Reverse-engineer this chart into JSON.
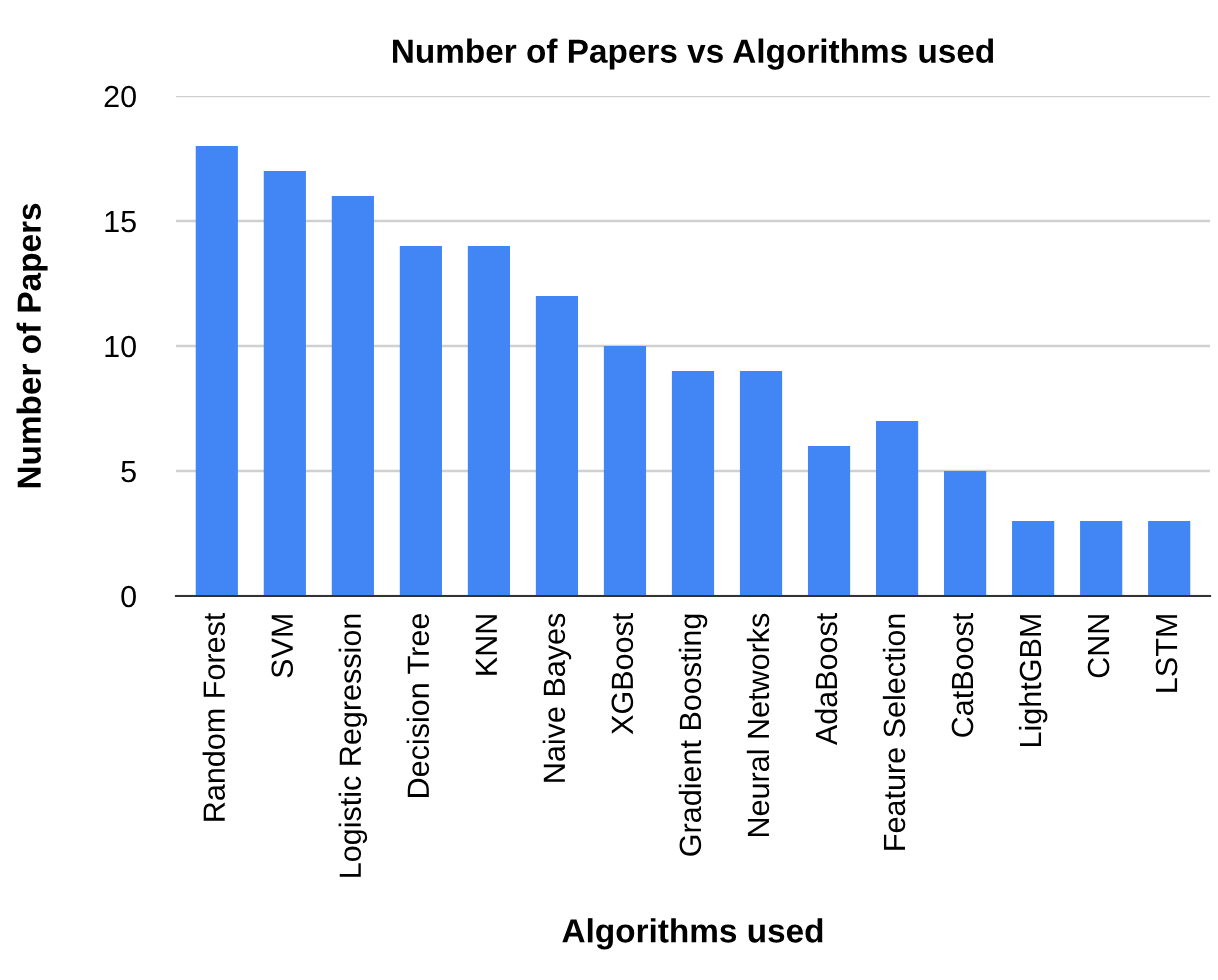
{
  "chart_data": {
    "type": "bar",
    "title": "Number of Papers vs Algorithms used",
    "xlabel": "Algorithms used",
    "ylabel": "Number of Papers",
    "categories": [
      "Random Forest",
      "SVM",
      "Logistic Regression",
      "Decision Tree",
      "KNN",
      "Naive Bayes",
      "XGBoost",
      "Gradient Boosting",
      "Neural Networks",
      "AdaBoost",
      "Feature Selection",
      "CatBoost",
      "LightGBM",
      "CNN",
      "LSTM"
    ],
    "values": [
      18,
      17,
      16,
      14,
      14,
      12,
      10,
      9,
      9,
      6,
      7,
      5,
      3,
      3,
      3
    ],
    "color": "#4285f4",
    "ylim": [
      0,
      20
    ],
    "yticks": [
      0,
      5,
      10,
      15,
      20
    ],
    "grid": "y",
    "legend": false
  }
}
